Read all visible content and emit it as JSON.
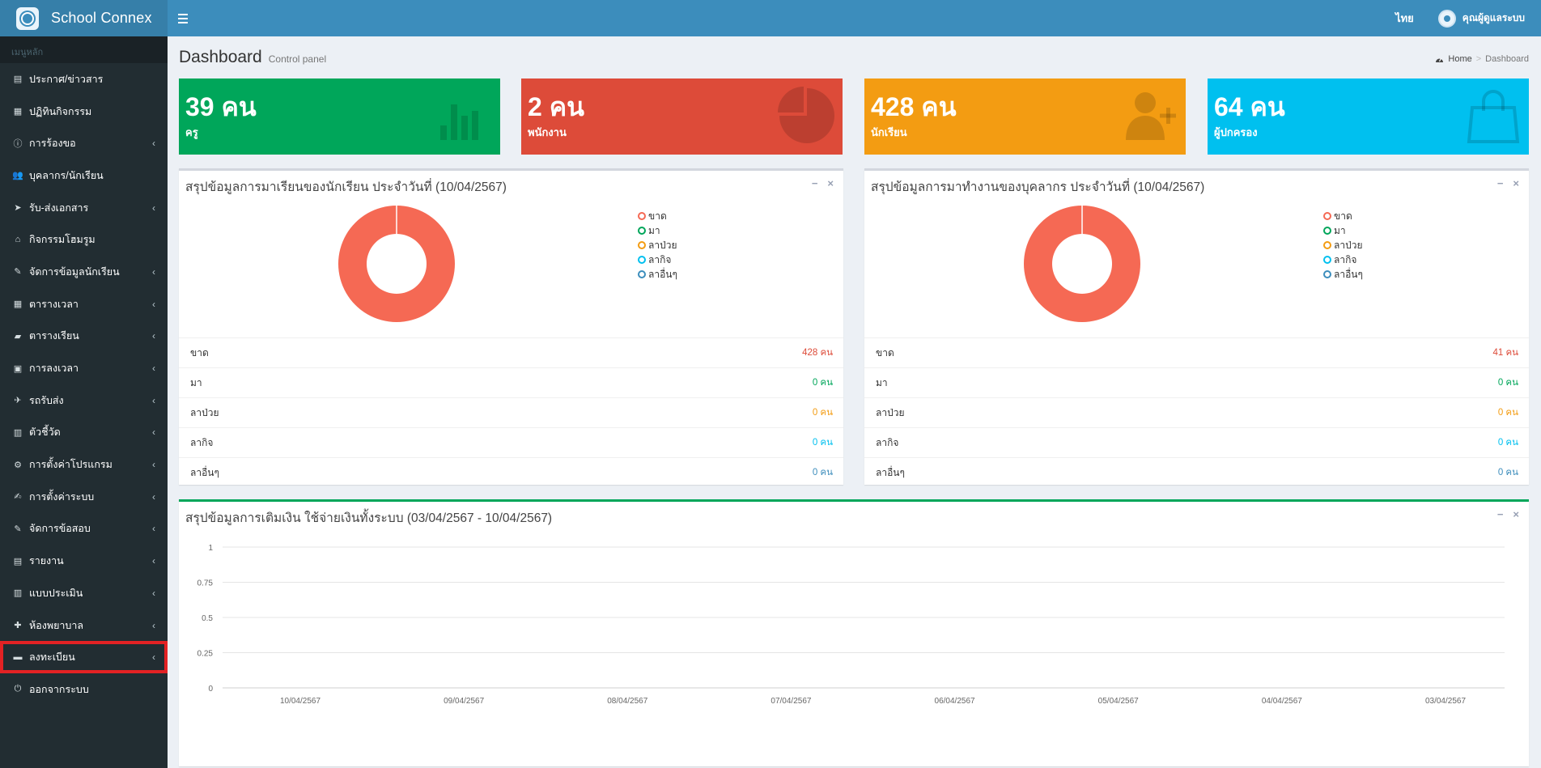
{
  "app": {
    "title": "School Connex"
  },
  "topbar": {
    "language": "ไทย",
    "user_name": "คุณผู้ดูแลระบบ"
  },
  "sidebar": {
    "header": "เมนูหลัก",
    "items": [
      {
        "label": "ประกาศ/ข่าวสาร",
        "icon": "newspaper-icon",
        "glyph": "▤",
        "has_children": false
      },
      {
        "label": "ปฏิทินกิจกรรม",
        "icon": "calendar-icon",
        "glyph": "▦",
        "has_children": false
      },
      {
        "label": "การร้องขอ",
        "icon": "info-circle-icon",
        "glyph": "ⓘ",
        "has_children": true
      },
      {
        "label": "บุคลากร/นักเรียน",
        "icon": "users-icon",
        "glyph": "👥",
        "has_children": false
      },
      {
        "label": "รับ-ส่งเอกสาร",
        "icon": "paper-plane-icon",
        "glyph": "➤",
        "has_children": true
      },
      {
        "label": "กิจกรรมโฮมรูม",
        "icon": "home-icon",
        "glyph": "⌂",
        "has_children": false
      },
      {
        "label": "จัดการข้อมูลนักเรียน",
        "icon": "edit-icon",
        "glyph": "✎",
        "has_children": true
      },
      {
        "label": "ตารางเวลา",
        "icon": "grid-icon",
        "glyph": "▦",
        "has_children": true
      },
      {
        "label": "ตารางเรียน",
        "icon": "book-icon",
        "glyph": "▰",
        "has_children": true
      },
      {
        "label": "การลงเวลา",
        "icon": "calendar-check-icon",
        "glyph": "▣",
        "has_children": true
      },
      {
        "label": "รถรับส่ง",
        "icon": "plane-icon",
        "glyph": "✈",
        "has_children": true
      },
      {
        "label": "ตัวชี้วัด",
        "icon": "bar-chart-icon",
        "glyph": "▥",
        "has_children": true
      },
      {
        "label": "การตั้งค่าโปรแกรม",
        "icon": "gear-icon",
        "glyph": "⚙",
        "has_children": true
      },
      {
        "label": "การตั้งค่าระบบ",
        "icon": "wrench-icon",
        "glyph": "✍",
        "has_children": true
      },
      {
        "label": "จัดการข้อสอบ",
        "icon": "edit-icon",
        "glyph": "✎",
        "has_children": true
      },
      {
        "label": "รายงาน",
        "icon": "file-icon",
        "glyph": "▤",
        "has_children": true
      },
      {
        "label": "แบบประเมิน",
        "icon": "clipboard-icon",
        "glyph": "▥",
        "has_children": true
      },
      {
        "label": "ห้องพยาบาล",
        "icon": "medkit-icon",
        "glyph": "✚",
        "has_children": true
      },
      {
        "label": "ลงทะเบียน",
        "icon": "id-card-icon",
        "glyph": "▬",
        "has_children": true,
        "active": true
      },
      {
        "label": "ออกจากระบบ",
        "icon": "power-icon",
        "glyph": "⏻",
        "has_children": false
      }
    ]
  },
  "page": {
    "title": "Dashboard",
    "subtitle": "Control panel"
  },
  "breadcrumb": {
    "home": "Home",
    "current": "Dashboard"
  },
  "stats": [
    {
      "value": "39 คน",
      "label": "ครู",
      "color": "#00a65a",
      "icon": "bar-chart-icon"
    },
    {
      "value": "2 คน",
      "label": "พนักงาน",
      "color": "#dd4b39",
      "icon": "pie-chart-icon"
    },
    {
      "value": "428 คน",
      "label": "นักเรียน",
      "color": "#f39c12",
      "icon": "user-plus-icon"
    },
    {
      "value": "64 คน",
      "label": "ผู้ปกครอง",
      "color": "#00c0ef",
      "icon": "shopping-bag-icon"
    }
  ],
  "student_box": {
    "title": "สรุปข้อมูลการมาเรียนของนักเรียน ประจำวันที่ (10/04/2567)",
    "rows": [
      {
        "label": "ขาด",
        "value": "428 คน",
        "color": "#dd4b39"
      },
      {
        "label": "มา",
        "value": "0 คน",
        "color": "#00a65a"
      },
      {
        "label": "ลาป่วย",
        "value": "0 คน",
        "color": "#f39c12"
      },
      {
        "label": "ลากิจ",
        "value": "0 คน",
        "color": "#00c0ef"
      },
      {
        "label": "ลาอื่นๆ",
        "value": "0 คน",
        "color": "#3c8dbc"
      }
    ]
  },
  "staff_box": {
    "title": "สรุปข้อมูลการมาทำงานของบุคลากร ประจำวันที่ (10/04/2567)",
    "rows": [
      {
        "label": "ขาด",
        "value": "41 คน",
        "color": "#dd4b39"
      },
      {
        "label": "มา",
        "value": "0 คน",
        "color": "#00a65a"
      },
      {
        "label": "ลาป่วย",
        "value": "0 คน",
        "color": "#f39c12"
      },
      {
        "label": "ลากิจ",
        "value": "0 คน",
        "color": "#00c0ef"
      },
      {
        "label": "ลาอื่นๆ",
        "value": "0 คน",
        "color": "#3c8dbc"
      }
    ]
  },
  "legend": [
    {
      "label": "ขาด",
      "color": "#f56954"
    },
    {
      "label": "มา",
      "color": "#00a65a"
    },
    {
      "label": "ลาป่วย",
      "color": "#f39c12"
    },
    {
      "label": "ลากิจ",
      "color": "#00c0ef"
    },
    {
      "label": "ลาอื่นๆ",
      "color": "#3c8dbc"
    }
  ],
  "finance_box": {
    "title": "สรุปข้อมูลการเติมเงิน ใช้จ่ายเงินทั้งระบบ (03/04/2567 - 10/04/2567)"
  },
  "box_tools": {
    "minimize": "−",
    "close": "×"
  },
  "chart_data": [
    {
      "type": "pie",
      "labels": [
        "ขาด",
        "มา",
        "ลาป่วย",
        "ลากิจ",
        "ลาอื่นๆ"
      ],
      "values": [
        428,
        0,
        0,
        0,
        0
      ],
      "colors": [
        "#f56954",
        "#00a65a",
        "#f39c12",
        "#00c0ef",
        "#3c8dbc"
      ],
      "legend": "right"
    },
    {
      "type": "pie",
      "labels": [
        "ขาด",
        "มา",
        "ลาป่วย",
        "ลากิจ",
        "ลาอื่นๆ"
      ],
      "values": [
        41,
        0,
        0,
        0,
        0
      ],
      "colors": [
        "#f56954",
        "#00a65a",
        "#f39c12",
        "#00c0ef",
        "#3c8dbc"
      ],
      "legend": "right"
    },
    {
      "type": "line",
      "x": [
        "10/04/2567",
        "09/04/2567",
        "08/04/2567",
        "07/04/2567",
        "06/04/2567",
        "05/04/2567",
        "04/04/2567",
        "03/04/2567"
      ],
      "yticks": [
        "0",
        "0.25",
        "0.5",
        "0.75",
        "1"
      ],
      "ylim": [
        0,
        1
      ],
      "grid": true,
      "series": []
    }
  ]
}
